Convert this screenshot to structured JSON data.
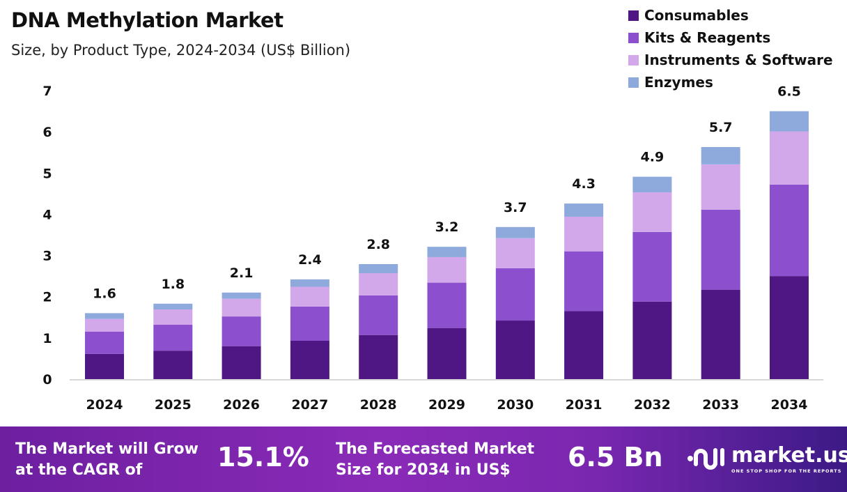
{
  "chart_data": {
    "type": "bar",
    "stacked": true,
    "title": "DNA Methylation Market",
    "subtitle": "Size, by Product Type, 2024-2034 (US$ Billion)",
    "categories": [
      "2024",
      "2025",
      "2026",
      "2027",
      "2028",
      "2029",
      "2030",
      "2031",
      "2032",
      "2033",
      "2034"
    ],
    "series": [
      {
        "name": "Consumables",
        "color": "#4f1783",
        "values": [
          0.61,
          0.69,
          0.8,
          0.93,
          1.07,
          1.24,
          1.42,
          1.65,
          1.88,
          2.17,
          2.5
        ]
      },
      {
        "name": "Kits & Reagents",
        "color": "#8c4fcd",
        "values": [
          0.54,
          0.63,
          0.72,
          0.83,
          0.96,
          1.1,
          1.27,
          1.45,
          1.69,
          1.94,
          2.22
        ]
      },
      {
        "name": "Instruments & Software",
        "color": "#d3a8ea",
        "values": [
          0.31,
          0.37,
          0.43,
          0.48,
          0.54,
          0.62,
          0.73,
          0.84,
          0.96,
          1.1,
          1.29
        ]
      },
      {
        "name": "Enzymes",
        "color": "#8eaadd",
        "values": [
          0.14,
          0.14,
          0.15,
          0.18,
          0.22,
          0.25,
          0.27,
          0.32,
          0.38,
          0.42,
          0.49
        ]
      }
    ],
    "totals": [
      "1.6",
      "1.8",
      "2.1",
      "2.4",
      "2.8",
      "3.2",
      "3.7",
      "4.3",
      "4.9",
      "5.7",
      "6.5"
    ],
    "ylim": [
      0,
      7
    ],
    "yticks": [
      "0",
      "1",
      "2",
      "3",
      "4",
      "5",
      "6",
      "7"
    ],
    "xlabel": "",
    "ylabel": "",
    "grid": false,
    "legend": "top-right"
  },
  "footer": {
    "cagr_label_1": "The Market will Grow",
    "cagr_label_2": "at the CAGR of",
    "cagr_value": "15.1%",
    "forecast_label_1": "The Forecasted Market",
    "forecast_label_2": "Size for 2034 in US$",
    "forecast_value": "6.5 Bn",
    "logo_name": "market.us",
    "logo_tagline": "ONE STOP SHOP FOR THE REPORTS"
  }
}
